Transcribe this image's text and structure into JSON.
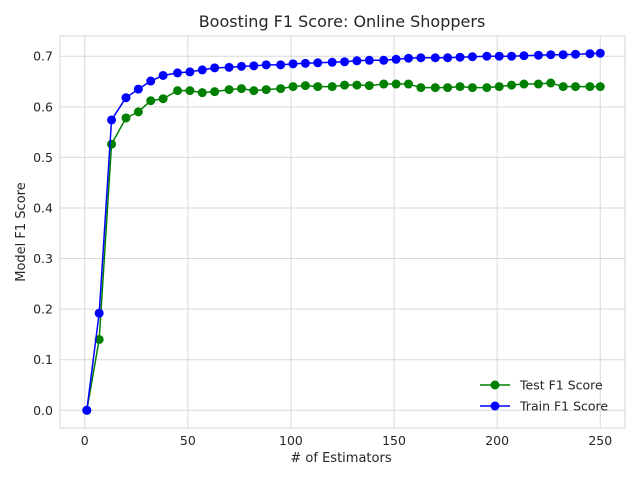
{
  "chart_data": {
    "type": "line",
    "title": "Boosting F1 Score: Online Shoppers",
    "xlabel": "# of Estimators",
    "ylabel": "Model F1 Score",
    "xlim": [
      -12,
      262
    ],
    "ylim": [
      -0.035,
      0.74
    ],
    "xticks": [
      0,
      50,
      100,
      150,
      200,
      250
    ],
    "yticks": [
      0.0,
      0.1,
      0.2,
      0.3,
      0.4,
      0.5,
      0.6,
      0.7
    ],
    "xtick_labels": [
      "0",
      "50",
      "100",
      "150",
      "200",
      "250"
    ],
    "ytick_labels": [
      "0.0",
      "0.1",
      "0.2",
      "0.3",
      "0.4",
      "0.5",
      "0.6",
      "0.7"
    ],
    "grid": true,
    "legend_position": "lower-right",
    "x": [
      1,
      7,
      13,
      20,
      26,
      32,
      38,
      45,
      51,
      57,
      63,
      70,
      76,
      82,
      88,
      95,
      101,
      107,
      113,
      120,
      126,
      132,
      138,
      145,
      151,
      157,
      163,
      170,
      176,
      182,
      188,
      195,
      201,
      207,
      213,
      220,
      226,
      232,
      238,
      245,
      250
    ],
    "series": [
      {
        "name": "Test F1 Score",
        "color": "#008000",
        "values": [
          0.0,
          0.14,
          0.526,
          0.578,
          0.59,
          0.612,
          0.616,
          0.632,
          0.632,
          0.628,
          0.63,
          0.634,
          0.636,
          0.632,
          0.634,
          0.636,
          0.64,
          0.642,
          0.64,
          0.64,
          0.643,
          0.643,
          0.642,
          0.645,
          0.645,
          0.645,
          0.638,
          0.638,
          0.638,
          0.64,
          0.638,
          0.638,
          0.64,
          0.643,
          0.645,
          0.645,
          0.647,
          0.64,
          0.64,
          0.64,
          0.64
        ]
      },
      {
        "name": "Train F1 Score",
        "color": "#0000ff",
        "values": [
          0.0,
          0.192,
          0.574,
          0.618,
          0.635,
          0.651,
          0.662,
          0.667,
          0.669,
          0.673,
          0.677,
          0.678,
          0.68,
          0.681,
          0.683,
          0.683,
          0.685,
          0.686,
          0.687,
          0.688,
          0.689,
          0.691,
          0.692,
          0.692,
          0.694,
          0.696,
          0.697,
          0.697,
          0.697,
          0.698,
          0.699,
          0.7,
          0.7,
          0.7,
          0.701,
          0.702,
          0.703,
          0.703,
          0.704,
          0.705,
          0.706
        ]
      }
    ]
  }
}
